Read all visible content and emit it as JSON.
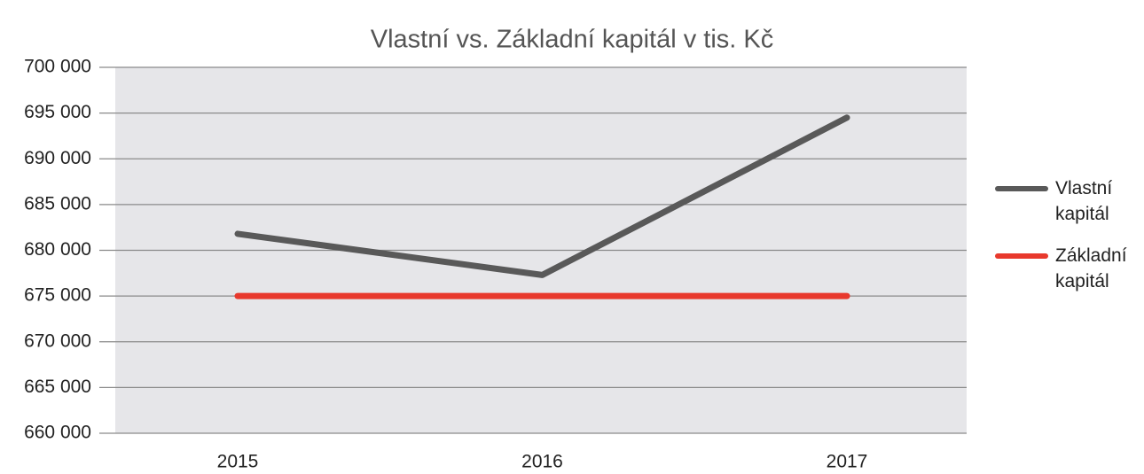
{
  "chart_data": {
    "type": "line",
    "title": "Vlastní vs. Základní kapitál v tis. Kč",
    "categories": [
      "2015",
      "2016",
      "2017"
    ],
    "series": [
      {
        "name": "Vlastní kapitál",
        "color": "#595959",
        "values": [
          681800,
          677300,
          694500
        ]
      },
      {
        "name": "Základní kapitál",
        "color": "#e8392d",
        "values": [
          675000,
          675000,
          675000
        ]
      }
    ],
    "ylim": [
      660000,
      700000
    ],
    "yticks": [
      {
        "value": 660000,
        "label": "660 000"
      },
      {
        "value": 665000,
        "label": "665 000"
      },
      {
        "value": 670000,
        "label": "670 000"
      },
      {
        "value": 675000,
        "label": "675 000"
      },
      {
        "value": 680000,
        "label": "680 000"
      },
      {
        "value": 685000,
        "label": "685 000"
      },
      {
        "value": 690000,
        "label": "690 000"
      },
      {
        "value": 695000,
        "label": "695 000"
      },
      {
        "value": 700000,
        "label": "700 000"
      }
    ],
    "grid": true,
    "legend": "right"
  }
}
